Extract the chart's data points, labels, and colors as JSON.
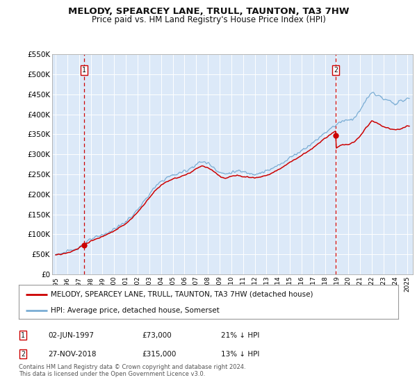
{
  "title": "MELODY, SPEARCEY LANE, TRULL, TAUNTON, TA3 7HW",
  "subtitle": "Price paid vs. HM Land Registry's House Price Index (HPI)",
  "legend_line1": "MELODY, SPEARCEY LANE, TRULL, TAUNTON, TA3 7HW (detached house)",
  "legend_line2": "HPI: Average price, detached house, Somerset",
  "annotation1_date": "02-JUN-1997",
  "annotation1_price": "£73,000",
  "annotation1_hpi": "21% ↓ HPI",
  "annotation1_year": 1997.42,
  "annotation1_value": 73000,
  "annotation2_date": "27-NOV-2018",
  "annotation2_price": "£315,000",
  "annotation2_hpi": "13% ↓ HPI",
  "annotation2_year": 2018.92,
  "annotation2_value": 315000,
  "ylim": [
    0,
    550000
  ],
  "xlim_start": 1994.7,
  "xlim_end": 2025.5,
  "chart_bg": "#dce9f8",
  "fig_bg": "#ffffff",
  "red_color": "#cc0000",
  "blue_color": "#7aadd4",
  "vline_color": "#cc0000",
  "grid_color": "#ffffff",
  "footnote": "Contains HM Land Registry data © Crown copyright and database right 2024.\nThis data is licensed under the Open Government Licence v3.0.",
  "hpi_years": [
    1995.0,
    1995.083,
    1995.167,
    1995.25,
    1995.333,
    1995.417,
    1995.5,
    1995.583,
    1995.667,
    1995.75,
    1995.833,
    1995.917,
    1996.0,
    1996.083,
    1996.167,
    1996.25,
    1996.333,
    1996.417,
    1996.5,
    1996.583,
    1996.667,
    1996.75,
    1996.833,
    1996.917,
    1997.0,
    1997.083,
    1997.167,
    1997.25,
    1997.333,
    1997.417,
    1997.5,
    1997.583,
    1997.667,
    1997.75,
    1997.833,
    1997.917,
    1998.0,
    1998.5,
    1999.0,
    1999.5,
    2000.0,
    2000.5,
    2001.0,
    2001.5,
    2002.0,
    2002.5,
    2003.0,
    2003.5,
    2004.0,
    2004.5,
    2005.0,
    2005.5,
    2006.0,
    2006.5,
    2007.0,
    2007.5,
    2008.0,
    2008.5,
    2009.0,
    2009.5,
    2010.0,
    2010.5,
    2011.0,
    2011.5,
    2012.0,
    2012.5,
    2013.0,
    2013.5,
    2014.0,
    2014.5,
    2015.0,
    2015.5,
    2016.0,
    2016.5,
    2017.0,
    2017.5,
    2018.0,
    2018.5,
    2019.0,
    2019.5,
    2020.0,
    2020.5,
    2021.0,
    2021.5,
    2022.0,
    2022.5,
    2023.0,
    2023.5,
    2024.0,
    2024.5,
    2025.0
  ],
  "hpi_values": [
    50000,
    50500,
    51000,
    51500,
    51800,
    52000,
    52500,
    53000,
    53500,
    54000,
    54500,
    55000,
    55500,
    56500,
    57500,
    58500,
    59500,
    60500,
    61500,
    62500,
    63500,
    64500,
    65500,
    67000,
    68500,
    70000,
    71500,
    73000,
    74500,
    76000,
    77500,
    79000,
    80500,
    82000,
    83500,
    85000,
    87000,
    92000,
    98000,
    105000,
    113000,
    122000,
    132000,
    145000,
    162000,
    180000,
    200000,
    218000,
    232000,
    242000,
    248000,
    252000,
    258000,
    265000,
    275000,
    282000,
    278000,
    268000,
    255000,
    250000,
    255000,
    258000,
    256000,
    253000,
    252000,
    254000,
    258000,
    264000,
    272000,
    282000,
    292000,
    300000,
    310000,
    320000,
    330000,
    342000,
    355000,
    365000,
    375000,
    385000,
    385000,
    392000,
    410000,
    435000,
    455000,
    448000,
    438000,
    432000,
    428000,
    432000,
    440000
  ]
}
